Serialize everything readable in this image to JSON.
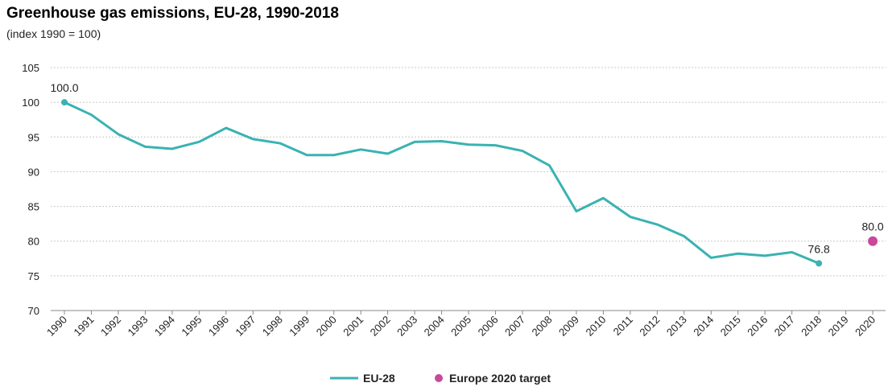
{
  "chart_data": {
    "type": "line",
    "title": "Greenhouse gas emissions, EU-28, 1990-2018",
    "subtitle": "(index 1990 = 100)",
    "categories": [
      "1990",
      "1991",
      "1992",
      "1993",
      "1994",
      "1995",
      "1996",
      "1997",
      "1998",
      "1999",
      "2000",
      "2001",
      "2002",
      "2003",
      "2004",
      "2005",
      "2006",
      "2007",
      "2008",
      "2009",
      "2010",
      "2011",
      "2012",
      "2013",
      "2014",
      "2015",
      "2016",
      "2017",
      "2018",
      "2019",
      "2020"
    ],
    "series": [
      {
        "name": "EU-28",
        "color": "#3AB2B2",
        "values": [
          100.0,
          98.2,
          95.4,
          93.6,
          93.3,
          94.3,
          96.3,
          94.7,
          94.1,
          92.4,
          92.4,
          93.2,
          92.6,
          94.3,
          94.4,
          93.9,
          93.8,
          93.0,
          90.9,
          84.3,
          86.2,
          83.5,
          82.4,
          80.7,
          77.6,
          78.2,
          77.9,
          78.4,
          76.8,
          null,
          null
        ]
      },
      {
        "name": "Europe 2020 target",
        "color": "#C9489B",
        "values": [
          null,
          null,
          null,
          null,
          null,
          null,
          null,
          null,
          null,
          null,
          null,
          null,
          null,
          null,
          null,
          null,
          null,
          null,
          null,
          null,
          null,
          null,
          null,
          null,
          null,
          null,
          null,
          null,
          null,
          null,
          80.0
        ]
      }
    ],
    "data_labels": [
      {
        "category": "1990",
        "text": "100.0"
      },
      {
        "category": "2018",
        "text": "76.8"
      },
      {
        "category": "2020",
        "text": "80.0"
      }
    ],
    "ylim": [
      70,
      105
    ],
    "yticks": [
      70,
      75,
      80,
      85,
      90,
      95,
      100,
      105
    ],
    "grid": true,
    "legend_position": "bottom-center"
  }
}
